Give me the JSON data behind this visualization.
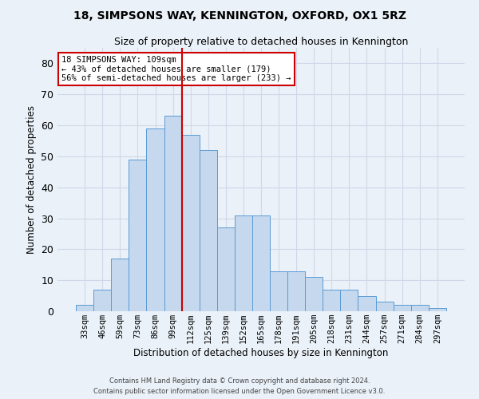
{
  "title": "18, SIMPSONS WAY, KENNINGTON, OXFORD, OX1 5RZ",
  "subtitle": "Size of property relative to detached houses in Kennington",
  "xlabel": "Distribution of detached houses by size in Kennington",
  "ylabel": "Number of detached properties",
  "bar_labels": [
    "33sqm",
    "46sqm",
    "59sqm",
    "73sqm",
    "86sqm",
    "99sqm",
    "112sqm",
    "125sqm",
    "139sqm",
    "152sqm",
    "165sqm",
    "178sqm",
    "191sqm",
    "205sqm",
    "218sqm",
    "231sqm",
    "244sqm",
    "257sqm",
    "271sqm",
    "284sqm",
    "297sqm"
  ],
  "bar_heights": [
    2,
    7,
    17,
    49,
    59,
    63,
    57,
    52,
    27,
    31,
    31,
    13,
    13,
    11,
    7,
    7,
    5,
    3,
    2,
    2,
    1
  ],
  "bar_color": "#c5d8ed",
  "bar_edge_color": "#5b9bd5",
  "vline_x": 6.0,
  "vline_color": "#cc0000",
  "annotation_title": "18 SIMPSONS WAY: 109sqm",
  "annotation_line1": "← 43% of detached houses are smaller (179)",
  "annotation_line2": "56% of semi-detached houses are larger (233) →",
  "annotation_box_color": "#ffffff",
  "annotation_box_edge": "#cc0000",
  "ylim": [
    0,
    85
  ],
  "yticks": [
    0,
    10,
    20,
    30,
    40,
    50,
    60,
    70,
    80
  ],
  "grid_color": "#d0d8e8",
  "footnote1": "Contains HM Land Registry data © Crown copyright and database right 2024.",
  "footnote2": "Contains public sector information licensed under the Open Government Licence v3.0.",
  "background_color": "#eaf1f8",
  "plot_bg_color": "#eaf1f8"
}
